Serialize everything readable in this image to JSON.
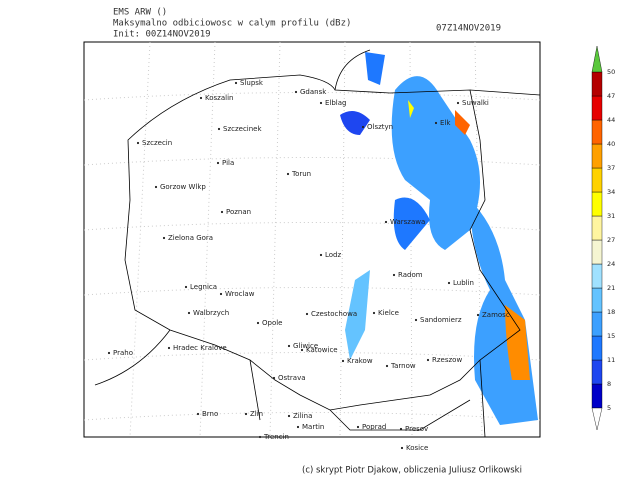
{
  "header": {
    "model": "EMS ARW ()",
    "field": "Maksymalno odbiciowosc w calym profilu (dBz)",
    "init": "Init: 00Z14NOV2019",
    "valid": "07Z14NOV2019"
  },
  "cities": [
    "Slupsk",
    "Koszalin",
    "Gdansk",
    "Elblag",
    "Olsztyn",
    "Elk",
    "Suwalki",
    "Szczecinek",
    "Szczecin",
    "Pila",
    "Torun",
    "Gorzow Wlkp",
    "Poznan",
    "Warszawa",
    "Zielona Gora",
    "Lodz",
    "Radom",
    "Lublin",
    "Legnica",
    "Wroclaw",
    "Walbrzych",
    "Opole",
    "Czestochowa",
    "Kielce",
    "Sandomierz",
    "Zamosc",
    "Praho",
    "Hradec Kralove",
    "Gliwice",
    "Katowice",
    "Krakow",
    "Tarnow",
    "Rzeszow",
    "Ostrava",
    "Brno",
    "Zlin",
    "Zilina",
    "Martin",
    "Poprad",
    "Presov",
    "Trencin",
    "Kosice"
  ],
  "colorbar": {
    "levels": [
      5,
      8,
      11,
      15,
      18,
      21,
      24,
      27,
      31,
      34,
      37,
      40,
      44,
      47,
      50
    ],
    "colors": [
      "#0000c8",
      "#1e46f0",
      "#1e78ff",
      "#3ca0ff",
      "#64c3ff",
      "#a0e1ff",
      "#f5f5d2",
      "#fff5a0",
      "#ffff00",
      "#ffd200",
      "#ffa000",
      "#ff6400",
      "#e60000",
      "#b40000"
    ],
    "over": "#5ac83c",
    "under": "#ffffff"
  },
  "footer": "(c) skrypt Piotr Djakow, obliczenia Juliusz Orlikowski"
}
